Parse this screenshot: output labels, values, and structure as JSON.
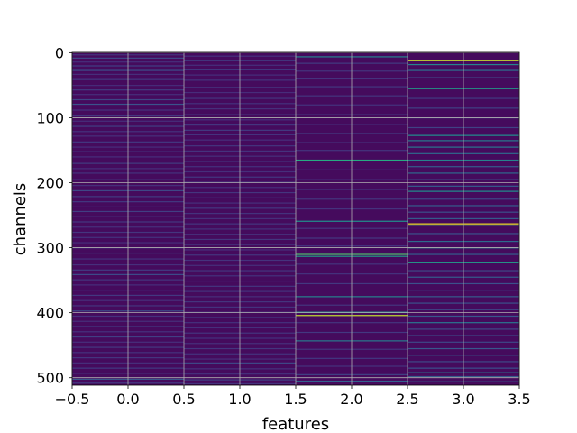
{
  "chart_data": {
    "type": "heatmap",
    "title": "",
    "xlabel": "features",
    "ylabel": "channels",
    "xlim": [
      -0.5,
      3.5
    ],
    "ylim": [
      511.5,
      -0.5
    ],
    "y_inverted": true,
    "grid": true,
    "colormap": "viridis",
    "n_columns": 4,
    "n_rows": 512,
    "x_ticks": [
      -0.5,
      0.0,
      0.5,
      1.0,
      1.5,
      2.0,
      2.5,
      3.0,
      3.5
    ],
    "x_tick_labels": [
      "−0.5",
      "0.0",
      "0.5",
      "1.0",
      "1.5",
      "2.0",
      "2.5",
      "3.0",
      "3.5"
    ],
    "y_ticks": [
      0,
      100,
      200,
      300,
      400,
      500
    ],
    "y_tick_labels": [
      "0",
      "100",
      "200",
      "300",
      "400",
      "500"
    ],
    "columns": [
      {
        "x": 0,
        "lines": [
          [
            3,
            0.16
          ],
          [
            8,
            0.22
          ],
          [
            14,
            0.14
          ],
          [
            20,
            0.19
          ],
          [
            27,
            0.24
          ],
          [
            33,
            0.14
          ],
          [
            41,
            0.17
          ],
          [
            50,
            0.13
          ],
          [
            57,
            0.18
          ],
          [
            64,
            0.14
          ],
          [
            72,
            0.21
          ],
          [
            79,
            0.26
          ],
          [
            88,
            0.15
          ],
          [
            97,
            0.16
          ],
          [
            105,
            0.14
          ],
          [
            113,
            0.19
          ],
          [
            121,
            0.15
          ],
          [
            128,
            0.14
          ],
          [
            137,
            0.17
          ],
          [
            145,
            0.13
          ],
          [
            152,
            0.16
          ],
          [
            160,
            0.14
          ],
          [
            170,
            0.18
          ],
          [
            178,
            0.14
          ],
          [
            185,
            0.15
          ],
          [
            195,
            0.16
          ],
          [
            204,
            0.14
          ],
          [
            212,
            0.22
          ],
          [
            221,
            0.18
          ],
          [
            229,
            0.17
          ],
          [
            237,
            0.15
          ],
          [
            244,
            0.19
          ],
          [
            252,
            0.15
          ],
          [
            260,
            0.17
          ],
          [
            268,
            0.14
          ],
          [
            276,
            0.16
          ],
          [
            284,
            0.15
          ],
          [
            292,
            0.14
          ],
          [
            300,
            0.15
          ],
          [
            308,
            0.21
          ],
          [
            317,
            0.15
          ],
          [
            326,
            0.14
          ],
          [
            334,
            0.18
          ],
          [
            341,
            0.24
          ],
          [
            349,
            0.16
          ],
          [
            357,
            0.14
          ],
          [
            365,
            0.15
          ],
          [
            373,
            0.17
          ],
          [
            381,
            0.14
          ],
          [
            389,
            0.16
          ],
          [
            397,
            0.22
          ],
          [
            405,
            0.15
          ],
          [
            413,
            0.14
          ],
          [
            421,
            0.18
          ],
          [
            429,
            0.15
          ],
          [
            437,
            0.19
          ],
          [
            445,
            0.14
          ],
          [
            453,
            0.17
          ],
          [
            461,
            0.15
          ],
          [
            469,
            0.16
          ],
          [
            477,
            0.14
          ],
          [
            485,
            0.18
          ],
          [
            493,
            0.15
          ],
          [
            502,
            0.28
          ],
          [
            508,
            0.17
          ]
        ]
      },
      {
        "x": 1,
        "lines": [
          [
            5,
            0.15
          ],
          [
            12,
            0.18
          ],
          [
            19,
            0.14
          ],
          [
            26,
            0.17
          ],
          [
            34,
            0.14
          ],
          [
            42,
            0.16
          ],
          [
            53,
            0.15
          ],
          [
            61,
            0.13
          ],
          [
            70,
            0.16
          ],
          [
            78,
            0.15
          ],
          [
            86,
            0.14
          ],
          [
            95,
            0.15
          ],
          [
            103,
            0.14
          ],
          [
            111,
            0.16
          ],
          [
            119,
            0.18
          ],
          [
            126,
            0.15
          ],
          [
            134,
            0.14
          ],
          [
            143,
            0.16
          ],
          [
            151,
            0.15
          ],
          [
            159,
            0.14
          ],
          [
            167,
            0.16
          ],
          [
            175,
            0.15
          ],
          [
            183,
            0.14
          ],
          [
            191,
            0.17
          ],
          [
            199,
            0.15
          ],
          [
            207,
            0.14
          ],
          [
            215,
            0.16
          ],
          [
            223,
            0.15
          ],
          [
            231,
            0.14
          ],
          [
            239,
            0.17
          ],
          [
            247,
            0.15
          ],
          [
            255,
            0.14
          ],
          [
            263,
            0.16
          ],
          [
            271,
            0.15
          ],
          [
            279,
            0.14
          ],
          [
            287,
            0.16
          ],
          [
            295,
            0.15
          ],
          [
            303,
            0.14
          ],
          [
            311,
            0.16
          ],
          [
            319,
            0.15
          ],
          [
            327,
            0.14
          ],
          [
            335,
            0.16
          ],
          [
            343,
            0.15
          ],
          [
            351,
            0.14
          ],
          [
            359,
            0.16
          ],
          [
            367,
            0.15
          ],
          [
            375,
            0.14
          ],
          [
            383,
            0.16
          ],
          [
            391,
            0.15
          ],
          [
            399,
            0.14
          ],
          [
            407,
            0.16
          ],
          [
            415,
            0.15
          ],
          [
            423,
            0.14
          ],
          [
            431,
            0.16
          ],
          [
            439,
            0.15
          ],
          [
            447,
            0.14
          ],
          [
            455,
            0.16
          ],
          [
            463,
            0.15
          ],
          [
            471,
            0.14
          ],
          [
            477,
            0.22
          ],
          [
            486,
            0.15
          ],
          [
            494,
            0.14
          ],
          [
            503,
            0.2
          ],
          [
            509,
            0.15
          ]
        ]
      },
      {
        "x": 2,
        "lines": [
          [
            6,
            0.45
          ],
          [
            16,
            0.18
          ],
          [
            28,
            0.16
          ],
          [
            40,
            0.15
          ],
          [
            52,
            0.17
          ],
          [
            66,
            0.16
          ],
          [
            80,
            0.15
          ],
          [
            95,
            0.16
          ],
          [
            110,
            0.15
          ],
          [
            124,
            0.17
          ],
          [
            138,
            0.15
          ],
          [
            150,
            0.16
          ],
          [
            165,
            0.62
          ],
          [
            180,
            0.16
          ],
          [
            195,
            0.15
          ],
          [
            210,
            0.17
          ],
          [
            225,
            0.16
          ],
          [
            240,
            0.15
          ],
          [
            259,
            0.5
          ],
          [
            270,
            0.16
          ],
          [
            285,
            0.17
          ],
          [
            297,
            0.15
          ],
          [
            310,
            0.72
          ],
          [
            313,
            0.55
          ],
          [
            325,
            0.16
          ],
          [
            340,
            0.15
          ],
          [
            355,
            0.17
          ],
          [
            375,
            0.45
          ],
          [
            388,
            0.16
          ],
          [
            399,
            0.55
          ],
          [
            404,
            0.92
          ],
          [
            415,
            0.16
          ],
          [
            430,
            0.17
          ],
          [
            443,
            0.42
          ],
          [
            456,
            0.16
          ],
          [
            470,
            0.17
          ],
          [
            482,
            0.15
          ],
          [
            495,
            0.2
          ],
          [
            505,
            0.32
          ]
        ]
      },
      {
        "x": 3,
        "lines": [
          [
            12,
            0.92
          ],
          [
            18,
            0.45
          ],
          [
            27,
            0.38
          ],
          [
            38,
            0.2
          ],
          [
            55,
            0.55
          ],
          [
            70,
            0.18
          ],
          [
            85,
            0.2
          ],
          [
            100,
            0.17
          ],
          [
            115,
            0.2
          ],
          [
            127,
            0.5
          ],
          [
            135,
            0.42
          ],
          [
            145,
            0.4
          ],
          [
            155,
            0.35
          ],
          [
            165,
            0.45
          ],
          [
            175,
            0.3
          ],
          [
            185,
            0.35
          ],
          [
            195,
            0.25
          ],
          [
            205,
            0.3
          ],
          [
            213,
            0.5
          ],
          [
            225,
            0.22
          ],
          [
            235,
            0.3
          ],
          [
            245,
            0.25
          ],
          [
            255,
            0.3
          ],
          [
            263,
            0.98
          ],
          [
            266,
            0.72
          ],
          [
            278,
            0.25
          ],
          [
            290,
            0.35
          ],
          [
            300,
            0.45
          ],
          [
            310,
            0.3
          ],
          [
            322,
            0.55
          ],
          [
            335,
            0.22
          ],
          [
            345,
            0.3
          ],
          [
            355,
            0.25
          ],
          [
            365,
            0.22
          ],
          [
            375,
            0.3
          ],
          [
            385,
            0.25
          ],
          [
            395,
            0.22
          ],
          [
            405,
            0.28
          ],
          [
            415,
            0.4
          ],
          [
            425,
            0.22
          ],
          [
            435,
            0.25
          ],
          [
            445,
            0.22
          ],
          [
            455,
            0.28
          ],
          [
            465,
            0.3
          ],
          [
            475,
            0.22
          ],
          [
            485,
            0.25
          ],
          [
            492,
            0.42
          ],
          [
            498,
            0.3
          ],
          [
            506,
            0.35
          ]
        ]
      }
    ]
  }
}
